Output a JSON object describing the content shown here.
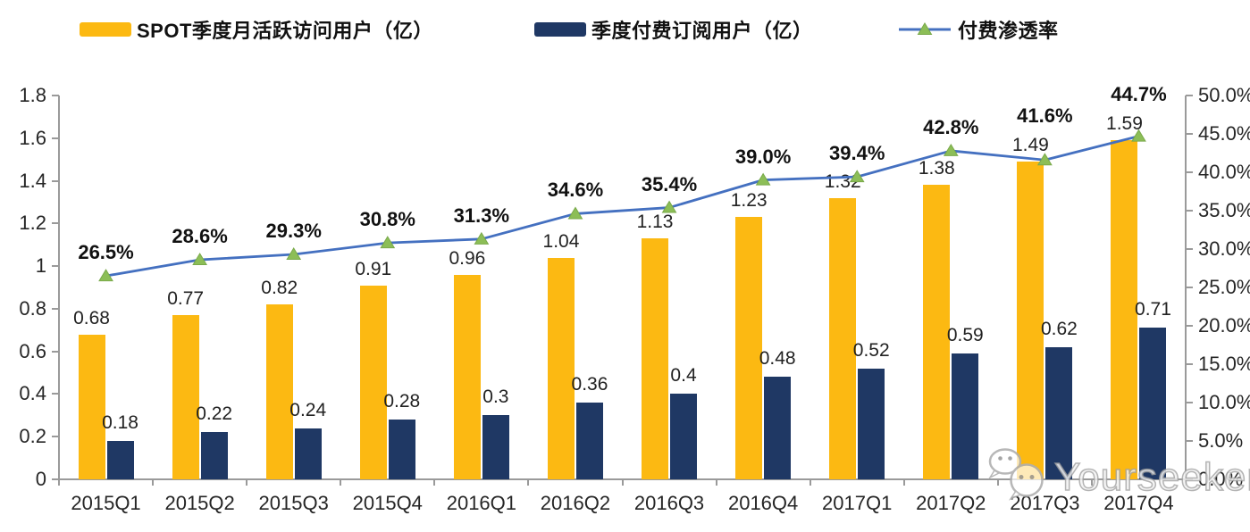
{
  "legend": {
    "items": [
      {
        "label": "SPOT季度月活跃访问用户（亿）",
        "swatch_color": "#FCB912",
        "type": "bar"
      },
      {
        "label": "季度付费订阅用户（亿）",
        "swatch_color": "#1F3864",
        "type": "bar"
      },
      {
        "label": "付费渗透率",
        "line_color": "#4470C0",
        "marker_color": "#8CBE57",
        "type": "line"
      }
    ]
  },
  "chart_data": {
    "type": "combo-bar-line",
    "categories": [
      "2015Q1",
      "2015Q2",
      "2015Q3",
      "2015Q4",
      "2016Q1",
      "2016Q2",
      "2016Q3",
      "2016Q4",
      "2017Q1",
      "2017Q2",
      "2017Q3",
      "2017Q4"
    ],
    "series": [
      {
        "name": "SPOT季度月活跃访问用户（亿）",
        "type": "bar",
        "color": "#FCB912",
        "y_axis": "left",
        "values": [
          0.68,
          0.77,
          0.82,
          0.91,
          0.96,
          1.04,
          1.13,
          1.23,
          1.32,
          1.38,
          1.49,
          1.59
        ],
        "labels": [
          "0.68",
          "0.77",
          "0.82",
          "0.91",
          "0.96",
          "1.04",
          "1.13",
          "1.23",
          "1.32",
          "1.38",
          "1.49",
          "1.59"
        ]
      },
      {
        "name": "季度付费订阅用户（亿）",
        "type": "bar",
        "color": "#1F3864",
        "y_axis": "left",
        "values": [
          0.18,
          0.22,
          0.24,
          0.28,
          0.3,
          0.36,
          0.4,
          0.48,
          0.52,
          0.59,
          0.62,
          0.71
        ],
        "labels": [
          "0.18",
          "0.22",
          "0.24",
          "0.28",
          "0.3",
          "0.36",
          "0.4",
          "0.48",
          "0.52",
          "0.59",
          "0.62",
          "0.71"
        ]
      },
      {
        "name": "付费渗透率",
        "type": "line",
        "color": "#4470C0",
        "marker": "triangle",
        "marker_color": "#8CBE57",
        "marker_edge_color": "#79A94A",
        "y_axis": "right",
        "values": [
          26.5,
          28.6,
          29.3,
          30.8,
          31.3,
          34.6,
          35.4,
          39.0,
          39.4,
          42.8,
          41.6,
          44.7
        ],
        "labels": [
          "26.5%",
          "28.6%",
          "29.3%",
          "30.8%",
          "31.3%",
          "34.6%",
          "35.4%",
          "39.0%",
          "39.4%",
          "42.8%",
          "41.6%",
          "44.7%"
        ]
      }
    ],
    "left_axis": {
      "min": 0,
      "max": 1.8,
      "step": 0.2,
      "tick_labels": [
        "0",
        "0.2",
        "0.4",
        "0.6",
        "0.8",
        "1",
        "1.2",
        "1.4",
        "1.6",
        "1.8"
      ]
    },
    "right_axis": {
      "min": 0,
      "max": 50,
      "step": 5,
      "unit": "%",
      "tick_labels": [
        "0.0%",
        "5.0%",
        "10.0%",
        "15.0%",
        "20.0%",
        "25.0%",
        "30.0%",
        "35.0%",
        "40.0%",
        "45.0%",
        "50.0%"
      ]
    },
    "grid": false,
    "legend_position": "top"
  },
  "watermark": {
    "text": "Yourseeker",
    "icon": "wechat-icon"
  }
}
